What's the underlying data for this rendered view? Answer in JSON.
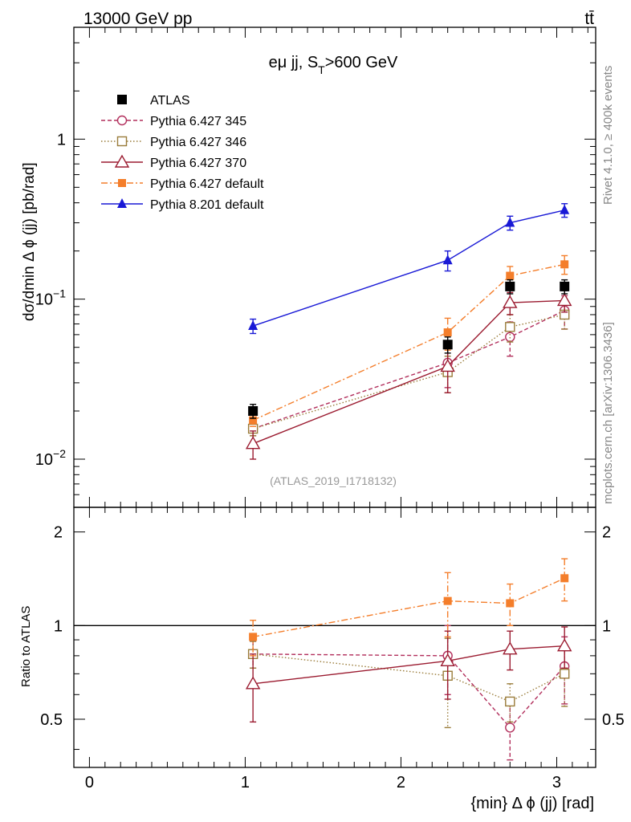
{
  "header": {
    "left": "13000 GeV pp",
    "right": "tt̄"
  },
  "side_labels": {
    "rivet": "Rivet 4.1.0, ≥ 400k events",
    "mcplots": "mcplots.cern.ch [arXiv:1306.3436]"
  },
  "chart_data": {
    "type": "line",
    "title": "eμ jj, S_T>600 GeV",
    "title_parts": {
      "main": "eμ jj, S",
      "sub": "T",
      "tail": ">600 GeV"
    },
    "analysis_label": "(ATLAS_2019_I1718132)",
    "xlabel": "{min} Δ ϕ (jj) [rad]",
    "ylabel": "dσ/dmin Δ ϕ (jj) [pb/rad]",
    "ratio_ylabel": "Ratio to ATLAS",
    "xlim": [
      -0.1,
      3.25
    ],
    "ylim": [
      0.005,
      5.0
    ],
    "ratio_ylim": [
      0.35,
      2.4
    ],
    "yscale": "log",
    "x_ticks": [
      "0",
      "1",
      "2",
      "3"
    ],
    "y_ticks": [
      {
        "value": 0.01,
        "base": "10",
        "exp": "−2"
      },
      {
        "value": 0.1,
        "base": "10",
        "exp": "−1"
      },
      {
        "value": 1,
        "base": "1",
        "exp": ""
      }
    ],
    "ratio_ticks": [
      "0.5",
      "1",
      "2"
    ],
    "x": [
      1.05,
      2.3,
      2.7,
      3.05
    ],
    "series": [
      {
        "name": "ATLAS",
        "color": "#000000",
        "marker": "square-filled",
        "dash": "none",
        "values": [
          0.02,
          0.052,
          0.12,
          0.12
        ],
        "errors": [
          0.002,
          0.006,
          0.012,
          0.012
        ],
        "ratio": [
          1,
          1,
          1,
          1
        ],
        "ratio_err": [
          0,
          0,
          0,
          0
        ]
      },
      {
        "name": "Pythia 6.427 345",
        "color": "#b22f5c",
        "marker": "circle-open",
        "dash": "5,3",
        "values": [
          0.0155,
          0.04,
          0.058,
          0.085
        ],
        "errors": [
          0.0015,
          0.012,
          0.014,
          0.02
        ],
        "ratio": [
          0.81,
          0.8,
          0.47,
          0.74
        ],
        "ratio_err": [
          0.08,
          0.2,
          0.1,
          0.18
        ]
      },
      {
        "name": "Pythia 6.427 346",
        "color": "#9a7c3a",
        "marker": "square-open",
        "dash": "1.5,2.5",
        "values": [
          0.0155,
          0.035,
          0.067,
          0.08
        ],
        "errors": [
          0.0015,
          0.009,
          0.013,
          0.015
        ],
        "ratio": [
          0.81,
          0.69,
          0.57,
          0.7
        ],
        "ratio_err": [
          0.08,
          0.22,
          0.08,
          0.15
        ]
      },
      {
        "name": "Pythia 6.427 370",
        "color": "#9b1b30",
        "marker": "triangle-open",
        "dash": "none",
        "values": [
          0.0125,
          0.038,
          0.095,
          0.098
        ],
        "errors": [
          0.0025,
          0.012,
          0.015,
          0.015
        ],
        "ratio": [
          0.65,
          0.77,
          0.84,
          0.86
        ],
        "ratio_err": [
          0.16,
          0.19,
          0.12,
          0.13
        ]
      },
      {
        "name": "Pythia 6.427 default",
        "color": "#f47e2b",
        "marker": "square-filled-small",
        "dash": "8,3,2,3",
        "values": [
          0.0175,
          0.062,
          0.14,
          0.165
        ],
        "errors": [
          0.0015,
          0.014,
          0.02,
          0.022
        ],
        "ratio": [
          0.92,
          1.2,
          1.18,
          1.42
        ],
        "ratio_err": [
          0.12,
          0.28,
          0.18,
          0.22
        ]
      },
      {
        "name": "Pythia 8.201 default",
        "color": "#1919d6",
        "marker": "triangle-filled",
        "dash": "none",
        "values": [
          0.068,
          0.175,
          0.3,
          0.36
        ],
        "errors": [
          0.007,
          0.025,
          0.03,
          0.035
        ],
        "ratio": null,
        "ratio_err": null
      }
    ]
  }
}
